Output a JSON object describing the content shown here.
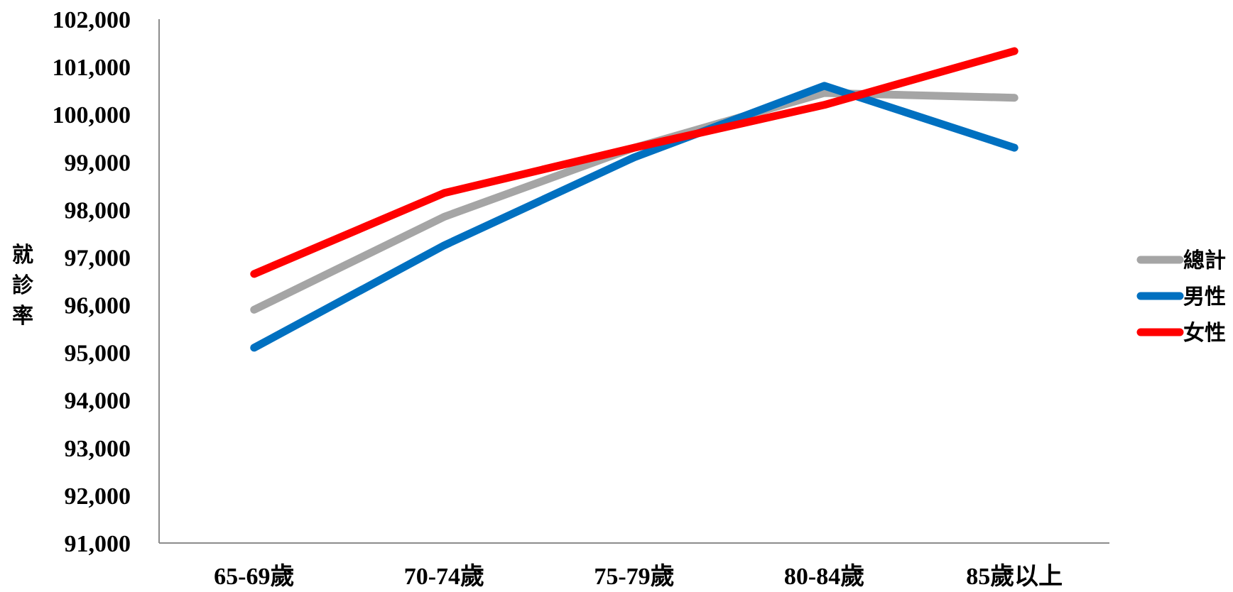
{
  "chart_data": {
    "type": "line",
    "categories": [
      "65-69歲",
      "70-74歲",
      "75-79歲",
      "80-84歲",
      "85歲以上"
    ],
    "ylabel": "就診率",
    "xlabel": "",
    "ylim": [
      91000,
      102000
    ],
    "ytick_values": [
      91000,
      92000,
      93000,
      94000,
      95000,
      96000,
      97000,
      98000,
      99000,
      100000,
      101000,
      102000
    ],
    "ytick_labels": [
      "91,000",
      "92,000",
      "93,000",
      "94,000",
      "95,000",
      "96,000",
      "97,000",
      "98,000",
      "99,000",
      "100,000",
      "101,000",
      "102,000"
    ],
    "grid": false,
    "legend_position": "right",
    "series": [
      {
        "name": "總計",
        "color": "#A5A5A5",
        "values": [
          95900,
          97850,
          99300,
          100450,
          100350
        ]
      },
      {
        "name": "男性",
        "color": "#0070C0",
        "values": [
          95100,
          97250,
          99100,
          100600,
          99300
        ]
      },
      {
        "name": "女性",
        "color": "#FF0000",
        "values": [
          96650,
          98350,
          99300,
          100200,
          101330
        ]
      }
    ]
  }
}
